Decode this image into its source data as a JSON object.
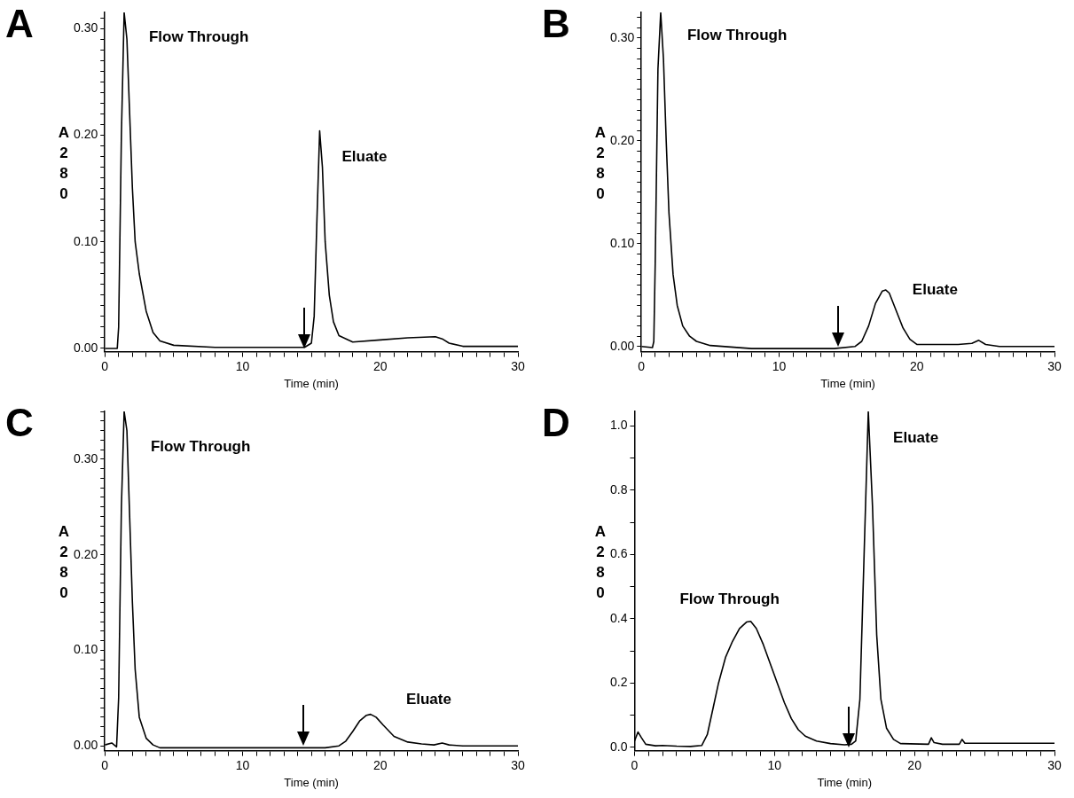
{
  "chart_data": [
    {
      "type": "line",
      "title": "A",
      "xlabel": "Time (min)",
      "ylabel": "A280",
      "series": [
        {
          "color": "#000000",
          "x": [
            0,
            0.9,
            1.0,
            1.2,
            1.4,
            1.6,
            1.8,
            2.0,
            2.2,
            2.5,
            3.0,
            3.5,
            4.0,
            5,
            8,
            14.5,
            15,
            15.2,
            15.4,
            15.6,
            15.8,
            16.0,
            16.3,
            16.6,
            17,
            18,
            20,
            22,
            24,
            24.5,
            25,
            26,
            30
          ],
          "values": [
            0,
            0,
            0.02,
            0.2,
            0.315,
            0.29,
            0.22,
            0.15,
            0.1,
            0.07,
            0.035,
            0.015,
            0.007,
            0.003,
            0.001,
            0.001,
            0.005,
            0.03,
            0.12,
            0.204,
            0.17,
            0.1,
            0.05,
            0.025,
            0.012,
            0.006,
            0.008,
            0.01,
            0.011,
            0.009,
            0.005,
            0.002,
            0.002
          ]
        }
      ],
      "annotations": [
        {
          "text": "Flow Through",
          "x": 1.4,
          "y": 0.315
        },
        {
          "text": "Eluate",
          "x": 15.6,
          "y": 0.204
        }
      ],
      "xlim": [
        0,
        30
      ],
      "ylim": [
        -0.003,
        0.315
      ],
      "xticks": [
        0,
        {
          "value": 1,
          "label": null
        },
        {
          "value": 2,
          "label": null
        },
        {
          "value": 3,
          "label": null
        },
        {
          "value": 4,
          "label": null
        },
        {
          "value": 5,
          "label": null
        },
        {
          "value": 6,
          "label": null
        },
        {
          "value": 7,
          "label": null
        },
        {
          "value": 8,
          "label": null
        },
        {
          "value": 9,
          "label": null
        },
        10,
        {
          "value": 11,
          "label": null
        },
        {
          "value": 12,
          "label": null
        },
        {
          "value": 13,
          "label": null
        },
        {
          "value": 14,
          "label": null
        },
        {
          "value": 15,
          "label": null
        },
        {
          "value": 16,
          "label": null
        },
        {
          "value": 17,
          "label": null
        },
        {
          "value": 18,
          "label": null
        },
        {
          "value": 19,
          "label": null
        },
        20,
        {
          "value": 21,
          "label": null
        },
        {
          "value": 22,
          "label": null
        },
        {
          "value": 23,
          "label": null
        },
        {
          "value": 24,
          "label": null
        },
        {
          "value": 25,
          "label": null
        },
        {
          "value": 26,
          "label": null
        },
        {
          "value": 27,
          "label": null
        },
        {
          "value": 28,
          "label": null
        },
        {
          "value": 29,
          "label": null
        },
        30
      ],
      "yticks": [
        {
          "value": 0,
          "label": "0.00"
        },
        {
          "value": 0.01,
          "label": null
        },
        {
          "value": 0.02,
          "label": null
        },
        {
          "value": 0.03,
          "label": null
        },
        {
          "value": 0.04,
          "label": null
        },
        {
          "value": 0.05,
          "label": null
        },
        {
          "value": 0.06,
          "label": null
        },
        {
          "value": 0.07,
          "label": null
        },
        {
          "value": 0.08,
          "label": null
        },
        {
          "value": 0.09,
          "label": null
        },
        {
          "value": 0.1,
          "label": "0.10"
        },
        {
          "value": 0.11,
          "label": null
        },
        {
          "value": 0.12,
          "label": null
        },
        {
          "value": 0.13,
          "label": null
        },
        {
          "value": 0.14,
          "label": null
        },
        {
          "value": 0.15,
          "label": null
        },
        {
          "value": 0.16,
          "label": null
        },
        {
          "value": 0.17,
          "label": null
        },
        {
          "value": 0.18,
          "label": null
        },
        {
          "value": 0.19,
          "label": null
        },
        {
          "value": 0.2,
          "label": "0.20"
        },
        {
          "value": 0.21,
          "label": null
        },
        {
          "value": 0.22,
          "label": null
        },
        {
          "value": 0.23,
          "label": null
        },
        {
          "value": 0.24,
          "label": null
        },
        {
          "value": 0.25,
          "label": null
        },
        {
          "value": 0.26,
          "label": null
        },
        {
          "value": 0.27,
          "label": null
        },
        {
          "value": 0.28,
          "label": null
        },
        {
          "value": 0.29,
          "label": null
        },
        {
          "value": 0.3,
          "label": "0.30"
        },
        {
          "value": 0.31,
          "label": null
        }
      ],
      "grid": false,
      "legend": false,
      "marker": "none",
      "line_style": "solid"
    },
    {
      "type": "line",
      "title": "B",
      "xlabel": "Time (min)",
      "ylabel": "A280",
      "series": [
        {
          "color": "#000000",
          "x": [
            0,
            0.8,
            0.9,
            1.0,
            1.2,
            1.4,
            1.6,
            1.8,
            2.0,
            2.3,
            2.6,
            3,
            3.5,
            4,
            5,
            8,
            14,
            15.5,
            16,
            16.5,
            17,
            17.5,
            17.75,
            18,
            18.5,
            19,
            19.5,
            20,
            23,
            24,
            24.5,
            25,
            26,
            30
          ],
          "values": [
            0,
            -0.001,
            0.005,
            0.08,
            0.27,
            0.325,
            0.28,
            0.2,
            0.13,
            0.07,
            0.04,
            0.02,
            0.01,
            0.005,
            0.001,
            -0.002,
            -0.002,
            0,
            0.005,
            0.02,
            0.042,
            0.054,
            0.055,
            0.052,
            0.035,
            0.018,
            0.007,
            0.002,
            0.002,
            0.003,
            0.006,
            0.002,
            0,
            0
          ]
        }
      ],
      "annotations": [
        {
          "text": "Flow Through",
          "x": 1.4,
          "y": 0.325
        },
        {
          "text": "Eluate",
          "x": 17.75,
          "y": 0.055
        }
      ],
      "xlim": [
        0,
        30
      ],
      "ylim": [
        -0.005,
        0.325
      ],
      "xticks": [
        0,
        {
          "value": 1,
          "label": null
        },
        {
          "value": 2,
          "label": null
        },
        {
          "value": 3,
          "label": null
        },
        {
          "value": 4,
          "label": null
        },
        {
          "value": 5,
          "label": null
        },
        {
          "value": 6,
          "label": null
        },
        {
          "value": 7,
          "label": null
        },
        {
          "value": 8,
          "label": null
        },
        {
          "value": 9,
          "label": null
        },
        10,
        {
          "value": 11,
          "label": null
        },
        {
          "value": 12,
          "label": null
        },
        {
          "value": 13,
          "label": null
        },
        {
          "value": 14,
          "label": null
        },
        {
          "value": 15,
          "label": null
        },
        {
          "value": 16,
          "label": null
        },
        {
          "value": 17,
          "label": null
        },
        {
          "value": 18,
          "label": null
        },
        {
          "value": 19,
          "label": null
        },
        20,
        {
          "value": 21,
          "label": null
        },
        {
          "value": 22,
          "label": null
        },
        {
          "value": 23,
          "label": null
        },
        {
          "value": 24,
          "label": null
        },
        {
          "value": 25,
          "label": null
        },
        {
          "value": 26,
          "label": null
        },
        {
          "value": 27,
          "label": null
        },
        {
          "value": 28,
          "label": null
        },
        {
          "value": 29,
          "label": null
        },
        30
      ],
      "yticks": [
        {
          "value": 0,
          "label": "0.00"
        },
        {
          "value": 0.01,
          "label": null
        },
        {
          "value": 0.02,
          "label": null
        },
        {
          "value": 0.03,
          "label": null
        },
        {
          "value": 0.04,
          "label": null
        },
        {
          "value": 0.05,
          "label": null
        },
        {
          "value": 0.06,
          "label": null
        },
        {
          "value": 0.07,
          "label": null
        },
        {
          "value": 0.08,
          "label": null
        },
        {
          "value": 0.09,
          "label": null
        },
        {
          "value": 0.1,
          "label": "0.10"
        },
        {
          "value": 0.11,
          "label": null
        },
        {
          "value": 0.12,
          "label": null
        },
        {
          "value": 0.13,
          "label": null
        },
        {
          "value": 0.14,
          "label": null
        },
        {
          "value": 0.15,
          "label": null
        },
        {
          "value": 0.16,
          "label": null
        },
        {
          "value": 0.17,
          "label": null
        },
        {
          "value": 0.18,
          "label": null
        },
        {
          "value": 0.19,
          "label": null
        },
        {
          "value": 0.2,
          "label": "0.20"
        },
        {
          "value": 0.21,
          "label": null
        },
        {
          "value": 0.22,
          "label": null
        },
        {
          "value": 0.23,
          "label": null
        },
        {
          "value": 0.24,
          "label": null
        },
        {
          "value": 0.25,
          "label": null
        },
        {
          "value": 0.26,
          "label": null
        },
        {
          "value": 0.27,
          "label": null
        },
        {
          "value": 0.28,
          "label": null
        },
        {
          "value": 0.29,
          "label": null
        },
        {
          "value": 0.3,
          "label": "0.30"
        },
        {
          "value": 0.31,
          "label": null
        },
        {
          "value": 0.32,
          "label": null
        }
      ],
      "grid": false,
      "legend": false,
      "marker": "none",
      "line_style": "solid"
    },
    {
      "type": "line",
      "title": "C",
      "xlabel": "Time (min)",
      "ylabel": "A280",
      "series": [
        {
          "color": "#000000",
          "x": [
            0,
            0.5,
            0.85,
            1.0,
            1.2,
            1.4,
            1.6,
            1.8,
            2.0,
            2.2,
            2.5,
            3,
            3.5,
            4,
            14,
            16,
            17,
            17.5,
            18,
            18.5,
            19,
            19.3,
            19.7,
            20.2,
            21,
            22,
            23,
            23.9,
            24.5,
            25,
            26,
            30
          ],
          "values": [
            0.001,
            0.003,
            -0.001,
            0.05,
            0.25,
            0.35,
            0.33,
            0.24,
            0.15,
            0.08,
            0.03,
            0.008,
            0.001,
            -0.002,
            -0.002,
            -0.002,
            0,
            0.005,
            0.015,
            0.026,
            0.032,
            0.033,
            0.03,
            0.022,
            0.01,
            0.004,
            0.002,
            0.001,
            0.003,
            0.001,
            0,
            0
          ]
        }
      ],
      "annotations": [
        {
          "text": "Flow Through",
          "x": 1.4,
          "y": 0.35
        },
        {
          "text": "Eluate",
          "x": 19.3,
          "y": 0.033
        }
      ],
      "xlim": [
        0,
        30
      ],
      "ylim": [
        -0.005,
        0.35
      ],
      "xticks": [
        0,
        {
          "value": 1,
          "label": null
        },
        {
          "value": 2,
          "label": null
        },
        {
          "value": 3,
          "label": null
        },
        {
          "value": 4,
          "label": null
        },
        {
          "value": 5,
          "label": null
        },
        {
          "value": 6,
          "label": null
        },
        {
          "value": 7,
          "label": null
        },
        {
          "value": 8,
          "label": null
        },
        {
          "value": 9,
          "label": null
        },
        10,
        {
          "value": 11,
          "label": null
        },
        {
          "value": 12,
          "label": null
        },
        {
          "value": 13,
          "label": null
        },
        {
          "value": 14,
          "label": null
        },
        {
          "value": 15,
          "label": null
        },
        {
          "value": 16,
          "label": null
        },
        {
          "value": 17,
          "label": null
        },
        {
          "value": 18,
          "label": null
        },
        {
          "value": 19,
          "label": null
        },
        20,
        {
          "value": 21,
          "label": null
        },
        {
          "value": 22,
          "label": null
        },
        {
          "value": 23,
          "label": null
        },
        {
          "value": 24,
          "label": null
        },
        {
          "value": 25,
          "label": null
        },
        {
          "value": 26,
          "label": null
        },
        {
          "value": 27,
          "label": null
        },
        {
          "value": 28,
          "label": null
        },
        {
          "value": 29,
          "label": null
        },
        30
      ],
      "yticks": [
        {
          "value": 0,
          "label": "0.00"
        },
        {
          "value": 0.01,
          "label": null
        },
        {
          "value": 0.02,
          "label": null
        },
        {
          "value": 0.03,
          "label": null
        },
        {
          "value": 0.04,
          "label": null
        },
        {
          "value": 0.05,
          "label": null
        },
        {
          "value": 0.06,
          "label": null
        },
        {
          "value": 0.07,
          "label": null
        },
        {
          "value": 0.08,
          "label": null
        },
        {
          "value": 0.09,
          "label": null
        },
        {
          "value": 0.1,
          "label": "0.10"
        },
        {
          "value": 0.11,
          "label": null
        },
        {
          "value": 0.12,
          "label": null
        },
        {
          "value": 0.13,
          "label": null
        },
        {
          "value": 0.14,
          "label": null
        },
        {
          "value": 0.15,
          "label": null
        },
        {
          "value": 0.16,
          "label": null
        },
        {
          "value": 0.17,
          "label": null
        },
        {
          "value": 0.18,
          "label": null
        },
        {
          "value": 0.19,
          "label": null
        },
        {
          "value": 0.2,
          "label": "0.20"
        },
        {
          "value": 0.21,
          "label": null
        },
        {
          "value": 0.22,
          "label": null
        },
        {
          "value": 0.23,
          "label": null
        },
        {
          "value": 0.24,
          "label": null
        },
        {
          "value": 0.25,
          "label": null
        },
        {
          "value": 0.26,
          "label": null
        },
        {
          "value": 0.27,
          "label": null
        },
        {
          "value": 0.28,
          "label": null
        },
        {
          "value": 0.29,
          "label": null
        },
        {
          "value": 0.3,
          "label": "0.30"
        },
        {
          "value": 0.31,
          "label": null
        },
        {
          "value": 0.32,
          "label": null
        },
        {
          "value": 0.33,
          "label": null
        },
        {
          "value": 0.34,
          "label": null
        },
        {
          "value": 0.35,
          "label": null
        }
      ],
      "grid": false,
      "legend": false,
      "marker": "none",
      "line_style": "solid"
    },
    {
      "type": "line",
      "title": "D",
      "xlabel": "Time (min)",
      "ylabel": "A280",
      "series": [
        {
          "color": "#000000",
          "x": [
            0,
            0.25,
            0.5,
            0.8,
            1.5,
            2,
            3,
            4,
            4.8,
            5.2,
            5.6,
            6,
            6.5,
            7,
            7.5,
            8,
            8.3,
            8.7,
            9.2,
            9.7,
            10.2,
            10.7,
            11.2,
            11.7,
            12.2,
            13,
            14,
            15,
            15.5,
            15.8,
            16.1,
            16.4,
            16.7,
            17.0,
            17.3,
            17.6,
            18,
            18.5,
            19,
            21,
            21.2,
            21.4,
            22,
            23.2,
            23.4,
            23.6,
            30
          ],
          "values": [
            0.02,
            0.048,
            0.03,
            0.01,
            0.005,
            0.006,
            0.004,
            0.003,
            0.006,
            0.04,
            0.12,
            0.2,
            0.28,
            0.33,
            0.37,
            0.39,
            0.392,
            0.37,
            0.32,
            0.26,
            0.2,
            0.14,
            0.09,
            0.055,
            0.035,
            0.02,
            0.012,
            0.008,
            0.01,
            0.02,
            0.15,
            0.6,
            1.045,
            0.75,
            0.35,
            0.15,
            0.06,
            0.025,
            0.012,
            0.01,
            0.03,
            0.015,
            0.01,
            0.01,
            0.025,
            0.013,
            0.013
          ]
        }
      ],
      "annotations": [
        {
          "text": "Flow Through",
          "x": 8.3,
          "y": 0.392
        },
        {
          "text": "Eluate",
          "x": 16.7,
          "y": 1.045
        }
      ],
      "xlim": [
        0,
        30
      ],
      "ylim": [
        -0.01,
        1.045
      ],
      "xticks": [
        0,
        {
          "value": 1,
          "label": null
        },
        {
          "value": 2,
          "label": null
        },
        {
          "value": 3,
          "label": null
        },
        {
          "value": 4,
          "label": null
        },
        {
          "value": 5,
          "label": null
        },
        {
          "value": 6,
          "label": null
        },
        {
          "value": 7,
          "label": null
        },
        {
          "value": 8,
          "label": null
        },
        {
          "value": 9,
          "label": null
        },
        10,
        {
          "value": 11,
          "label": null
        },
        {
          "value": 12,
          "label": null
        },
        {
          "value": 13,
          "label": null
        },
        {
          "value": 14,
          "label": null
        },
        {
          "value": 15,
          "label": null
        },
        {
          "value": 16,
          "label": null
        },
        {
          "value": 17,
          "label": null
        },
        {
          "value": 18,
          "label": null
        },
        {
          "value": 19,
          "label": null
        },
        20,
        {
          "value": 21,
          "label": null
        },
        {
          "value": 22,
          "label": null
        },
        {
          "value": 23,
          "label": null
        },
        {
          "value": 24,
          "label": null
        },
        {
          "value": 25,
          "label": null
        },
        {
          "value": 26,
          "label": null
        },
        {
          "value": 27,
          "label": null
        },
        {
          "value": 28,
          "label": null
        },
        {
          "value": 29,
          "label": null
        },
        30
      ],
      "yticks": [
        {
          "value": 0,
          "label": "0.0"
        },
        {
          "value": 0.1,
          "label": null
        },
        {
          "value": 0.2,
          "label": "0.2"
        },
        {
          "value": 0.3,
          "label": null
        },
        {
          "value": 0.4,
          "label": "0.4"
        },
        {
          "value": 0.5,
          "label": null
        },
        {
          "value": 0.6,
          "label": "0.6"
        },
        {
          "value": 0.7,
          "label": null
        },
        {
          "value": 0.8,
          "label": "0.8"
        },
        {
          "value": 0.9,
          "label": null
        },
        {
          "value": 1.0,
          "label": "1.0"
        }
      ],
      "grid": false,
      "legend": false,
      "marker": "none",
      "line_style": "solid"
    }
  ]
}
